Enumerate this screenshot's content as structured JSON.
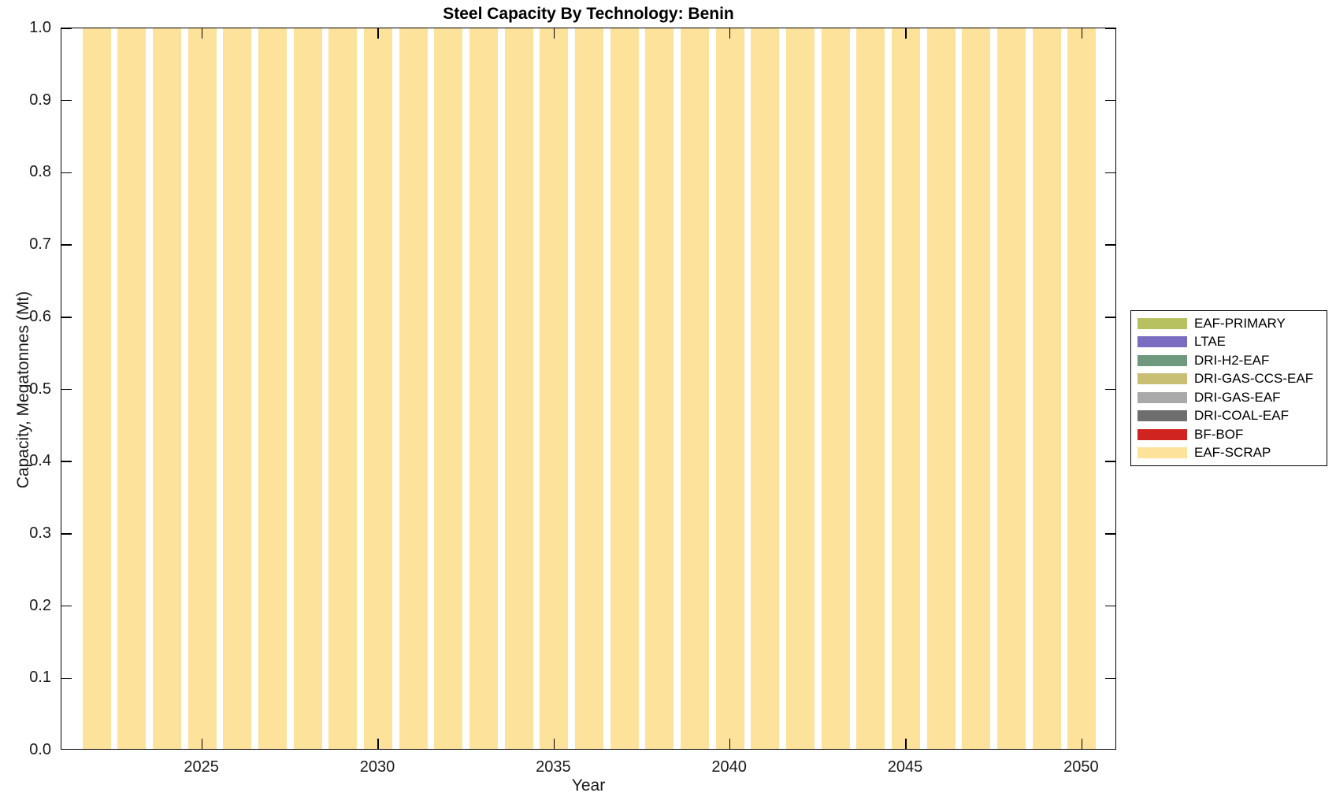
{
  "header": {
    "title": "Steel Capacity By Technology: Benin"
  },
  "axes": {
    "x_label": "Year",
    "y_label": "Capacity, Megatonnes (Mt)"
  },
  "legend": {
    "entries": [
      {
        "name": "EAF-PRIMARY",
        "color": "#b7c15f"
      },
      {
        "name": "LTAE",
        "color": "#7a6cc0"
      },
      {
        "name": "DRI-H2-EAF",
        "color": "#6f997e"
      },
      {
        "name": "DRI-GAS-CCS-EAF",
        "color": "#c8bf75"
      },
      {
        "name": "DRI-GAS-EAF",
        "color": "#a9a9a9"
      },
      {
        "name": "DRI-COAL-EAF",
        "color": "#6e6e6e"
      },
      {
        "name": "BF-BOF",
        "color": "#cf2420"
      },
      {
        "name": "EAF-SCRAP",
        "color": "#fce29b"
      }
    ]
  },
  "chart_data": {
    "type": "bar",
    "stacked": true,
    "title": "Steel Capacity By Technology: Benin",
    "xlabel": "Year",
    "ylabel": "Capacity, Megatonnes (Mt)",
    "xlim": [
      2021,
      2051
    ],
    "ylim": [
      0,
      1
    ],
    "bar_width_fraction": 0.8,
    "grid": false,
    "legend_position": "outside-right",
    "xticks": [
      2025,
      2030,
      2035,
      2040,
      2045,
      2050
    ],
    "xtick_labels": [
      "2025",
      "2030",
      "2035",
      "2040",
      "2045",
      "2050"
    ],
    "yticks": [
      0,
      0.1,
      0.2,
      0.3,
      0.4,
      0.5,
      0.6,
      0.7,
      0.8,
      0.9,
      1.0
    ],
    "ytick_labels": [
      "0.0",
      "0.1",
      "0.2",
      "0.3",
      "0.4",
      "0.5",
      "0.6",
      "0.7",
      "0.8",
      "0.9",
      "1.0"
    ],
    "categories": [
      2022,
      2023,
      2024,
      2025,
      2026,
      2027,
      2028,
      2029,
      2030,
      2031,
      2032,
      2033,
      2034,
      2035,
      2036,
      2037,
      2038,
      2039,
      2040,
      2041,
      2042,
      2043,
      2044,
      2045,
      2046,
      2047,
      2048,
      2049,
      2050
    ],
    "series": [
      {
        "name": "EAF-PRIMARY",
        "color": "#b7c15f",
        "values": [
          0,
          0,
          0,
          0,
          0,
          0,
          0,
          0,
          0,
          0,
          0,
          0,
          0,
          0,
          0,
          0,
          0,
          0,
          0,
          0,
          0,
          0,
          0,
          0,
          0,
          0,
          0,
          0,
          0
        ]
      },
      {
        "name": "LTAE",
        "color": "#7a6cc0",
        "values": [
          0,
          0,
          0,
          0,
          0,
          0,
          0,
          0,
          0,
          0,
          0,
          0,
          0,
          0,
          0,
          0,
          0,
          0,
          0,
          0,
          0,
          0,
          0,
          0,
          0,
          0,
          0,
          0,
          0
        ]
      },
      {
        "name": "DRI-H2-EAF",
        "color": "#6f997e",
        "values": [
          0,
          0,
          0,
          0,
          0,
          0,
          0,
          0,
          0,
          0,
          0,
          0,
          0,
          0,
          0,
          0,
          0,
          0,
          0,
          0,
          0,
          0,
          0,
          0,
          0,
          0,
          0,
          0,
          0
        ]
      },
      {
        "name": "DRI-GAS-CCS-EAF",
        "color": "#c8bf75",
        "values": [
          0,
          0,
          0,
          0,
          0,
          0,
          0,
          0,
          0,
          0,
          0,
          0,
          0,
          0,
          0,
          0,
          0,
          0,
          0,
          0,
          0,
          0,
          0,
          0,
          0,
          0,
          0,
          0,
          0
        ]
      },
      {
        "name": "DRI-GAS-EAF",
        "color": "#a9a9a9",
        "values": [
          0,
          0,
          0,
          0,
          0,
          0,
          0,
          0,
          0,
          0,
          0,
          0,
          0,
          0,
          0,
          0,
          0,
          0,
          0,
          0,
          0,
          0,
          0,
          0,
          0,
          0,
          0,
          0,
          0
        ]
      },
      {
        "name": "DRI-COAL-EAF",
        "color": "#6e6e6e",
        "values": [
          0,
          0,
          0,
          0,
          0,
          0,
          0,
          0,
          0,
          0,
          0,
          0,
          0,
          0,
          0,
          0,
          0,
          0,
          0,
          0,
          0,
          0,
          0,
          0,
          0,
          0,
          0,
          0,
          0
        ]
      },
      {
        "name": "BF-BOF",
        "color": "#cf2420",
        "values": [
          0,
          0,
          0,
          0,
          0,
          0,
          0,
          0,
          0,
          0,
          0,
          0,
          0,
          0,
          0,
          0,
          0,
          0,
          0,
          0,
          0,
          0,
          0,
          0,
          0,
          0,
          0,
          0,
          0
        ]
      },
      {
        "name": "EAF-SCRAP",
        "color": "#fce29b",
        "values": [
          1.0,
          1.0,
          1.0,
          1.0,
          1.0,
          1.0,
          1.0,
          1.0,
          1.0,
          1.0,
          1.0,
          1.0,
          1.0,
          1.0,
          1.0,
          1.0,
          1.0,
          1.0,
          1.0,
          1.0,
          1.0,
          1.0,
          1.0,
          1.0,
          1.0,
          1.0,
          1.0,
          1.0,
          1.0
        ]
      }
    ]
  }
}
